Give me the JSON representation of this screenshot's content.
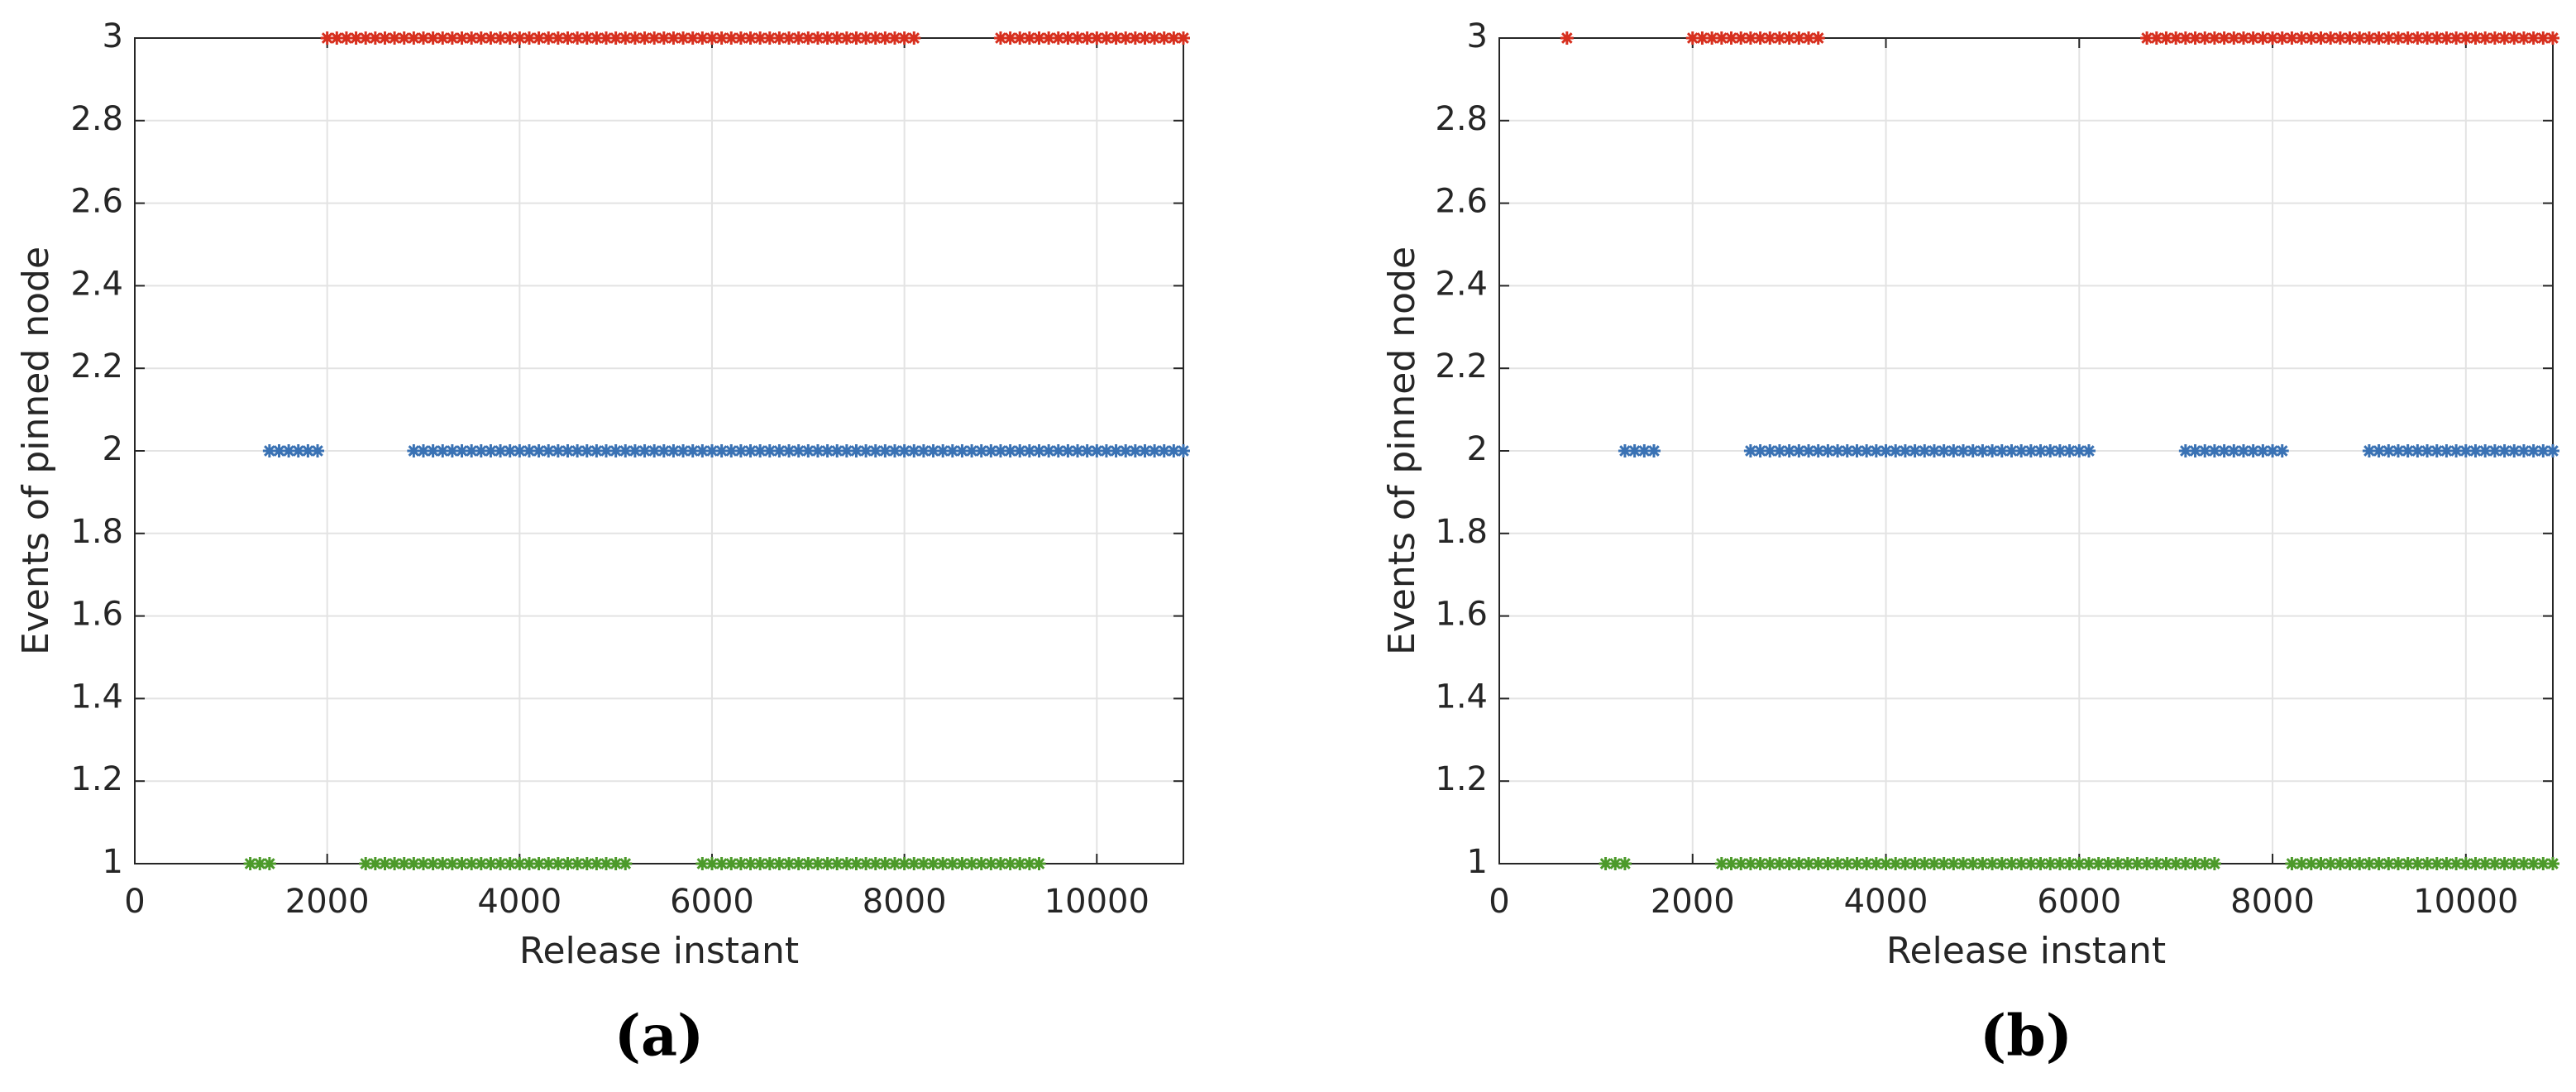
{
  "chart_data": [
    {
      "type": "scatter",
      "caption": "(a)",
      "xlabel": "Release instant",
      "ylabel": "Events of pinned node",
      "xlim": [
        0,
        10900
      ],
      "ylim": [
        1,
        3
      ],
      "xticks": [
        0,
        2000,
        4000,
        6000,
        8000,
        10000
      ],
      "yticks": [
        1,
        1.2,
        1.4,
        1.6,
        1.8,
        2,
        2.2,
        2.4,
        2.6,
        2.8,
        3
      ],
      "grid": true,
      "series": [
        {
          "color": "#d7301f",
          "x": [
            2000,
            2100,
            2200,
            2300,
            2400,
            2500,
            2600,
            2700,
            2800,
            2900,
            3000,
            3100,
            3200,
            3300,
            3400,
            3500,
            3600,
            3700,
            3800,
            3900,
            4000,
            4100,
            4200,
            4300,
            4400,
            4500,
            4600,
            4700,
            4800,
            4900,
            5000,
            5100,
            5200,
            5300,
            5400,
            5500,
            5600,
            5700,
            5800,
            5900,
            6000,
            6100,
            6200,
            6300,
            6400,
            6500,
            6600,
            6700,
            6800,
            6900,
            7000,
            7100,
            7200,
            7300,
            7400,
            7500,
            7600,
            7700,
            7800,
            7900,
            8000,
            8100,
            9000,
            9100,
            9200,
            9300,
            9400,
            9500,
            9600,
            9700,
            9800,
            9900,
            10000,
            10100,
            10200,
            10300,
            10400,
            10500,
            10600,
            10700,
            10800,
            10900
          ],
          "values": [
            3,
            3,
            3,
            3,
            3,
            3,
            3,
            3,
            3,
            3,
            3,
            3,
            3,
            3,
            3,
            3,
            3,
            3,
            3,
            3,
            3,
            3,
            3,
            3,
            3,
            3,
            3,
            3,
            3,
            3,
            3,
            3,
            3,
            3,
            3,
            3,
            3,
            3,
            3,
            3,
            3,
            3,
            3,
            3,
            3,
            3,
            3,
            3,
            3,
            3,
            3,
            3,
            3,
            3,
            3,
            3,
            3,
            3,
            3,
            3,
            3,
            3,
            3,
            3,
            3,
            3,
            3,
            3,
            3,
            3,
            3,
            3,
            3,
            3,
            3,
            3,
            3,
            3,
            3,
            3,
            3,
            3
          ]
        },
        {
          "color": "#3a72b4",
          "x": [
            1400,
            1500,
            1600,
            1700,
            1800,
            1900,
            2900,
            3000,
            3100,
            3200,
            3300,
            3400,
            3500,
            3600,
            3700,
            3800,
            3900,
            4000,
            4100,
            4200,
            4300,
            4400,
            4500,
            4600,
            4700,
            4800,
            4900,
            5000,
            5100,
            5200,
            5300,
            5400,
            5500,
            5600,
            5700,
            5800,
            5900,
            6000,
            6100,
            6200,
            6300,
            6400,
            6500,
            6600,
            6700,
            6800,
            6900,
            7000,
            7100,
            7200,
            7300,
            7400,
            7500,
            7600,
            7700,
            7800,
            7900,
            8000,
            8100,
            8200,
            8300,
            8400,
            8500,
            8600,
            8700,
            8800,
            8900,
            9000,
            9100,
            9200,
            9300,
            9400,
            9500,
            9600,
            9700,
            9800,
            9900,
            10000,
            10100,
            10200,
            10300,
            10400,
            10500,
            10600,
            10700,
            10800,
            10900
          ],
          "values": [
            2,
            2,
            2,
            2,
            2,
            2,
            2,
            2,
            2,
            2,
            2,
            2,
            2,
            2,
            2,
            2,
            2,
            2,
            2,
            2,
            2,
            2,
            2,
            2,
            2,
            2,
            2,
            2,
            2,
            2,
            2,
            2,
            2,
            2,
            2,
            2,
            2,
            2,
            2,
            2,
            2,
            2,
            2,
            2,
            2,
            2,
            2,
            2,
            2,
            2,
            2,
            2,
            2,
            2,
            2,
            2,
            2,
            2,
            2,
            2,
            2,
            2,
            2,
            2,
            2,
            2,
            2,
            2,
            2,
            2,
            2,
            2,
            2,
            2,
            2,
            2,
            2,
            2,
            2,
            2,
            2,
            2,
            2,
            2,
            2,
            2,
            2
          ]
        },
        {
          "color": "#4c9a2a",
          "x": [
            1200,
            1300,
            1400,
            2400,
            2500,
            2600,
            2700,
            2800,
            2900,
            3000,
            3100,
            3200,
            3300,
            3400,
            3500,
            3600,
            3700,
            3800,
            3900,
            4000,
            4100,
            4200,
            4300,
            4400,
            4500,
            4600,
            4700,
            4800,
            4900,
            5000,
            5100,
            5900,
            6000,
            6100,
            6200,
            6300,
            6400,
            6500,
            6600,
            6700,
            6800,
            6900,
            7000,
            7100,
            7200,
            7300,
            7400,
            7500,
            7600,
            7700,
            7800,
            7900,
            8000,
            8100,
            8200,
            8300,
            8400,
            8500,
            8600,
            8700,
            8800,
            8900,
            9000,
            9100,
            9200,
            9300,
            9400
          ],
          "values": [
            1,
            1,
            1,
            1,
            1,
            1,
            1,
            1,
            1,
            1,
            1,
            1,
            1,
            1,
            1,
            1,
            1,
            1,
            1,
            1,
            1,
            1,
            1,
            1,
            1,
            1,
            1,
            1,
            1,
            1,
            1,
            1,
            1,
            1,
            1,
            1,
            1,
            1,
            1,
            1,
            1,
            1,
            1,
            1,
            1,
            1,
            1,
            1,
            1,
            1,
            1,
            1,
            1,
            1,
            1,
            1,
            1,
            1,
            1,
            1,
            1,
            1,
            1,
            1,
            1,
            1,
            1
          ]
        }
      ]
    },
    {
      "type": "scatter",
      "caption": "(b)",
      "xlabel": "Release instant",
      "ylabel": "Events of pinned node",
      "xlim": [
        0,
        10900
      ],
      "ylim": [
        1,
        3
      ],
      "xticks": [
        0,
        2000,
        4000,
        6000,
        8000,
        10000
      ],
      "yticks": [
        1,
        1.2,
        1.4,
        1.6,
        1.8,
        2,
        2.2,
        2.4,
        2.6,
        2.8,
        3
      ],
      "grid": true,
      "series": [
        {
          "color": "#d7301f",
          "x": [
            700,
            2000,
            2100,
            2200,
            2300,
            2400,
            2500,
            2600,
            2700,
            2800,
            2900,
            3000,
            3100,
            3200,
            3300,
            6700,
            6800,
            6900,
            7000,
            7100,
            7200,
            7300,
            7400,
            7500,
            7600,
            7700,
            7800,
            7900,
            8000,
            8100,
            8200,
            8300,
            8400,
            8500,
            8600,
            8700,
            8800,
            8900,
            9000,
            9100,
            9200,
            9300,
            9400,
            9500,
            9600,
            9700,
            9800,
            9900,
            10000,
            10100,
            10200,
            10300,
            10400,
            10500,
            10600,
            10700,
            10800,
            10900
          ],
          "values": [
            3,
            3,
            3,
            3,
            3,
            3,
            3,
            3,
            3,
            3,
            3,
            3,
            3,
            3,
            3,
            3,
            3,
            3,
            3,
            3,
            3,
            3,
            3,
            3,
            3,
            3,
            3,
            3,
            3,
            3,
            3,
            3,
            3,
            3,
            3,
            3,
            3,
            3,
            3,
            3,
            3,
            3,
            3,
            3,
            3,
            3,
            3,
            3,
            3,
            3,
            3,
            3,
            3,
            3,
            3,
            3,
            3,
            3
          ]
        },
        {
          "color": "#3a72b4",
          "x": [
            1300,
            1400,
            1500,
            1600,
            2600,
            2700,
            2800,
            2900,
            3000,
            3100,
            3200,
            3300,
            3400,
            3500,
            3600,
            3700,
            3800,
            3900,
            4000,
            4100,
            4200,
            4300,
            4400,
            4500,
            4600,
            4700,
            4800,
            4900,
            5000,
            5100,
            5200,
            5300,
            5400,
            5500,
            5600,
            5700,
            5800,
            5900,
            6000,
            6100,
            7100,
            7200,
            7300,
            7400,
            7500,
            7600,
            7700,
            7800,
            7900,
            8000,
            8100,
            9000,
            9100,
            9200,
            9300,
            9400,
            9500,
            9600,
            9700,
            9800,
            9900,
            10000,
            10100,
            10200,
            10300,
            10400,
            10500,
            10600,
            10700,
            10800,
            10900
          ],
          "values": [
            2,
            2,
            2,
            2,
            2,
            2,
            2,
            2,
            2,
            2,
            2,
            2,
            2,
            2,
            2,
            2,
            2,
            2,
            2,
            2,
            2,
            2,
            2,
            2,
            2,
            2,
            2,
            2,
            2,
            2,
            2,
            2,
            2,
            2,
            2,
            2,
            2,
            2,
            2,
            2,
            2,
            2,
            2,
            2,
            2,
            2,
            2,
            2,
            2,
            2,
            2,
            2,
            2,
            2,
            2,
            2,
            2,
            2,
            2,
            2,
            2,
            2,
            2,
            2,
            2,
            2,
            2,
            2,
            2,
            2,
            2
          ]
        },
        {
          "color": "#4c9a2a",
          "x": [
            1100,
            1200,
            1300,
            2300,
            2400,
            2500,
            2600,
            2700,
            2800,
            2900,
            3000,
            3100,
            3200,
            3300,
            3400,
            3500,
            3600,
            3700,
            3800,
            3900,
            4000,
            4100,
            4200,
            4300,
            4400,
            4500,
            4600,
            4700,
            4800,
            4900,
            5000,
            5100,
            5200,
            5300,
            5400,
            5500,
            5600,
            5700,
            5800,
            5900,
            6000,
            6100,
            6200,
            6300,
            6400,
            6500,
            6600,
            6700,
            6800,
            6900,
            7000,
            7100,
            7200,
            7300,
            7400,
            8200,
            8300,
            8400,
            8500,
            8600,
            8700,
            8800,
            8900,
            9000,
            9100,
            9200,
            9300,
            9400,
            9500,
            9600,
            9700,
            9800,
            9900,
            10000,
            10100,
            10200,
            10300,
            10400,
            10500,
            10600,
            10700,
            10800,
            10900
          ],
          "values": [
            1,
            1,
            1,
            1,
            1,
            1,
            1,
            1,
            1,
            1,
            1,
            1,
            1,
            1,
            1,
            1,
            1,
            1,
            1,
            1,
            1,
            1,
            1,
            1,
            1,
            1,
            1,
            1,
            1,
            1,
            1,
            1,
            1,
            1,
            1,
            1,
            1,
            1,
            1,
            1,
            1,
            1,
            1,
            1,
            1,
            1,
            1,
            1,
            1,
            1,
            1,
            1,
            1,
            1,
            1,
            1,
            1,
            1,
            1,
            1,
            1,
            1,
            1,
            1,
            1,
            1,
            1,
            1,
            1,
            1,
            1,
            1,
            1,
            1,
            1,
            1,
            1,
            1,
            1,
            1,
            1,
            1,
            1
          ]
        }
      ]
    }
  ]
}
